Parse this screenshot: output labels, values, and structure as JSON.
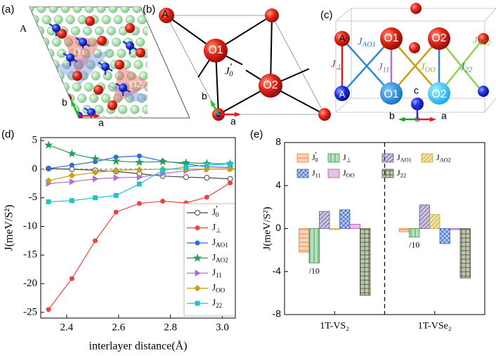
{
  "panel_labels": [
    "(a)",
    "(b)",
    "(c)",
    "(d)",
    "(e)"
  ],
  "structure_a": {
    "site_labels": [
      "A",
      "O1",
      "O2"
    ],
    "axes": [
      "b",
      "a"
    ]
  },
  "structure_b": {
    "site_labels": [
      "A",
      "O1",
      "O2"
    ],
    "coupling": "J′0",
    "axes": [
      "b",
      "a"
    ]
  },
  "structure_c": {
    "top_labels": [
      "A",
      "O1",
      "O2"
    ],
    "bottom_labels": [
      "A",
      "O1",
      "O2"
    ],
    "couplings": [
      "J⊥",
      "JAO1",
      "J11",
      "JOO",
      "J22",
      "JAO2"
    ],
    "axes": [
      "c",
      "b",
      "a"
    ]
  },
  "chart_data": [
    {
      "type": "line",
      "xlabel": "interlayer distance(Å)",
      "ylabel": "J(meV/S²)",
      "x": [
        2.33,
        2.42,
        2.51,
        2.59,
        2.68,
        2.77,
        2.86,
        2.94,
        3.03
      ],
      "xlim": [
        2.3,
        3.05
      ],
      "xticks": [
        2.4,
        2.6,
        2.8,
        {
          "value": 3,
          "label": "3.0"
        }
      ],
      "ylim": [
        -26,
        5.5
      ],
      "yticks": [
        5,
        0,
        -5,
        -10,
        -15,
        -20,
        -25
      ],
      "zero_line": true,
      "legend": "lower right",
      "series": [
        {
          "name": "J′0",
          "color": "#444444",
          "marker": "circle-open",
          "values": [
            0.1,
            0.0,
            -0.2,
            -0.4,
            -0.8,
            -1.2,
            -1.4,
            -1.5,
            -1.7
          ]
        },
        {
          "name": "J⊥",
          "color": "#e8453c",
          "marker": "circle",
          "values": [
            -24.5,
            -19.1,
            -12.5,
            -7.5,
            -6.0,
            -5.6,
            -5.9,
            -4.9,
            -2.4
          ]
        },
        {
          "name": "JAO1",
          "color": "#2b6cd6",
          "marker": "circle",
          "values": [
            0.1,
            0.7,
            1.3,
            2.1,
            2.3,
            1.4,
            0.9,
            0.4,
            0.3
          ]
        },
        {
          "name": "JAO2",
          "color": "#2a9a5a",
          "marker": "star",
          "values": [
            4.2,
            2.7,
            1.8,
            1.4,
            1.2,
            1.3,
            1.1,
            1.0,
            0.9
          ]
        },
        {
          "name": "J11",
          "color": "#b070d0",
          "marker": "triangle-right",
          "values": [
            -2.5,
            -2.2,
            -1.7,
            -1.5,
            -1.4,
            -0.8,
            -0.3,
            0.0,
            0.1
          ]
        },
        {
          "name": "JOO",
          "color": "#c8a010",
          "marker": "diamond",
          "values": [
            -2.0,
            -1.1,
            -0.6,
            -0.2,
            -0.1,
            0.0,
            0.0,
            0.0,
            0.0
          ]
        },
        {
          "name": "J22",
          "color": "#20c4c8",
          "marker": "square",
          "values": [
            -5.7,
            -5.5,
            -5.0,
            -4.6,
            -2.6,
            -0.2,
            0.4,
            0.7,
            0.9
          ]
        }
      ]
    },
    {
      "type": "bar",
      "ylabel": "J(meV/S²)",
      "categories": [
        "1T-VS₂",
        "1T-VSe₂"
      ],
      "ylim": [
        -8,
        8
      ],
      "yticks": [
        8,
        4,
        0,
        -4,
        -8
      ],
      "category_separator": true,
      "annotations": [
        "/10",
        "/10"
      ],
      "series": [
        {
          "name": "J′0",
          "color": "#e8803a",
          "hatch": "horizontal",
          "values": [
            -2.2,
            -0.3
          ]
        },
        {
          "name": "J⊥",
          "color": "#3a9a4a",
          "hatch": "vertical",
          "values": [
            -3.2,
            -0.8
          ]
        },
        {
          "name": "JAO1",
          "color": "#6a5a9a",
          "hatch": "diagonal",
          "values": [
            1.6,
            2.2
          ]
        },
        {
          "name": "JAO2",
          "color": "#c8a820",
          "hatch": "diagonal",
          "values": [
            -0.1,
            1.3
          ]
        },
        {
          "name": "J11",
          "color": "#3a6ac8",
          "hatch": "cross",
          "values": [
            1.75,
            -1.4
          ]
        },
        {
          "name": "JOO",
          "color": "#b050b0",
          "hatch": "none",
          "values": [
            0.4,
            -0.1
          ]
        },
        {
          "name": "J22",
          "color": "#4a5a30",
          "hatch": "grid",
          "values": [
            -6.2,
            -4.6
          ]
        }
      ]
    }
  ]
}
